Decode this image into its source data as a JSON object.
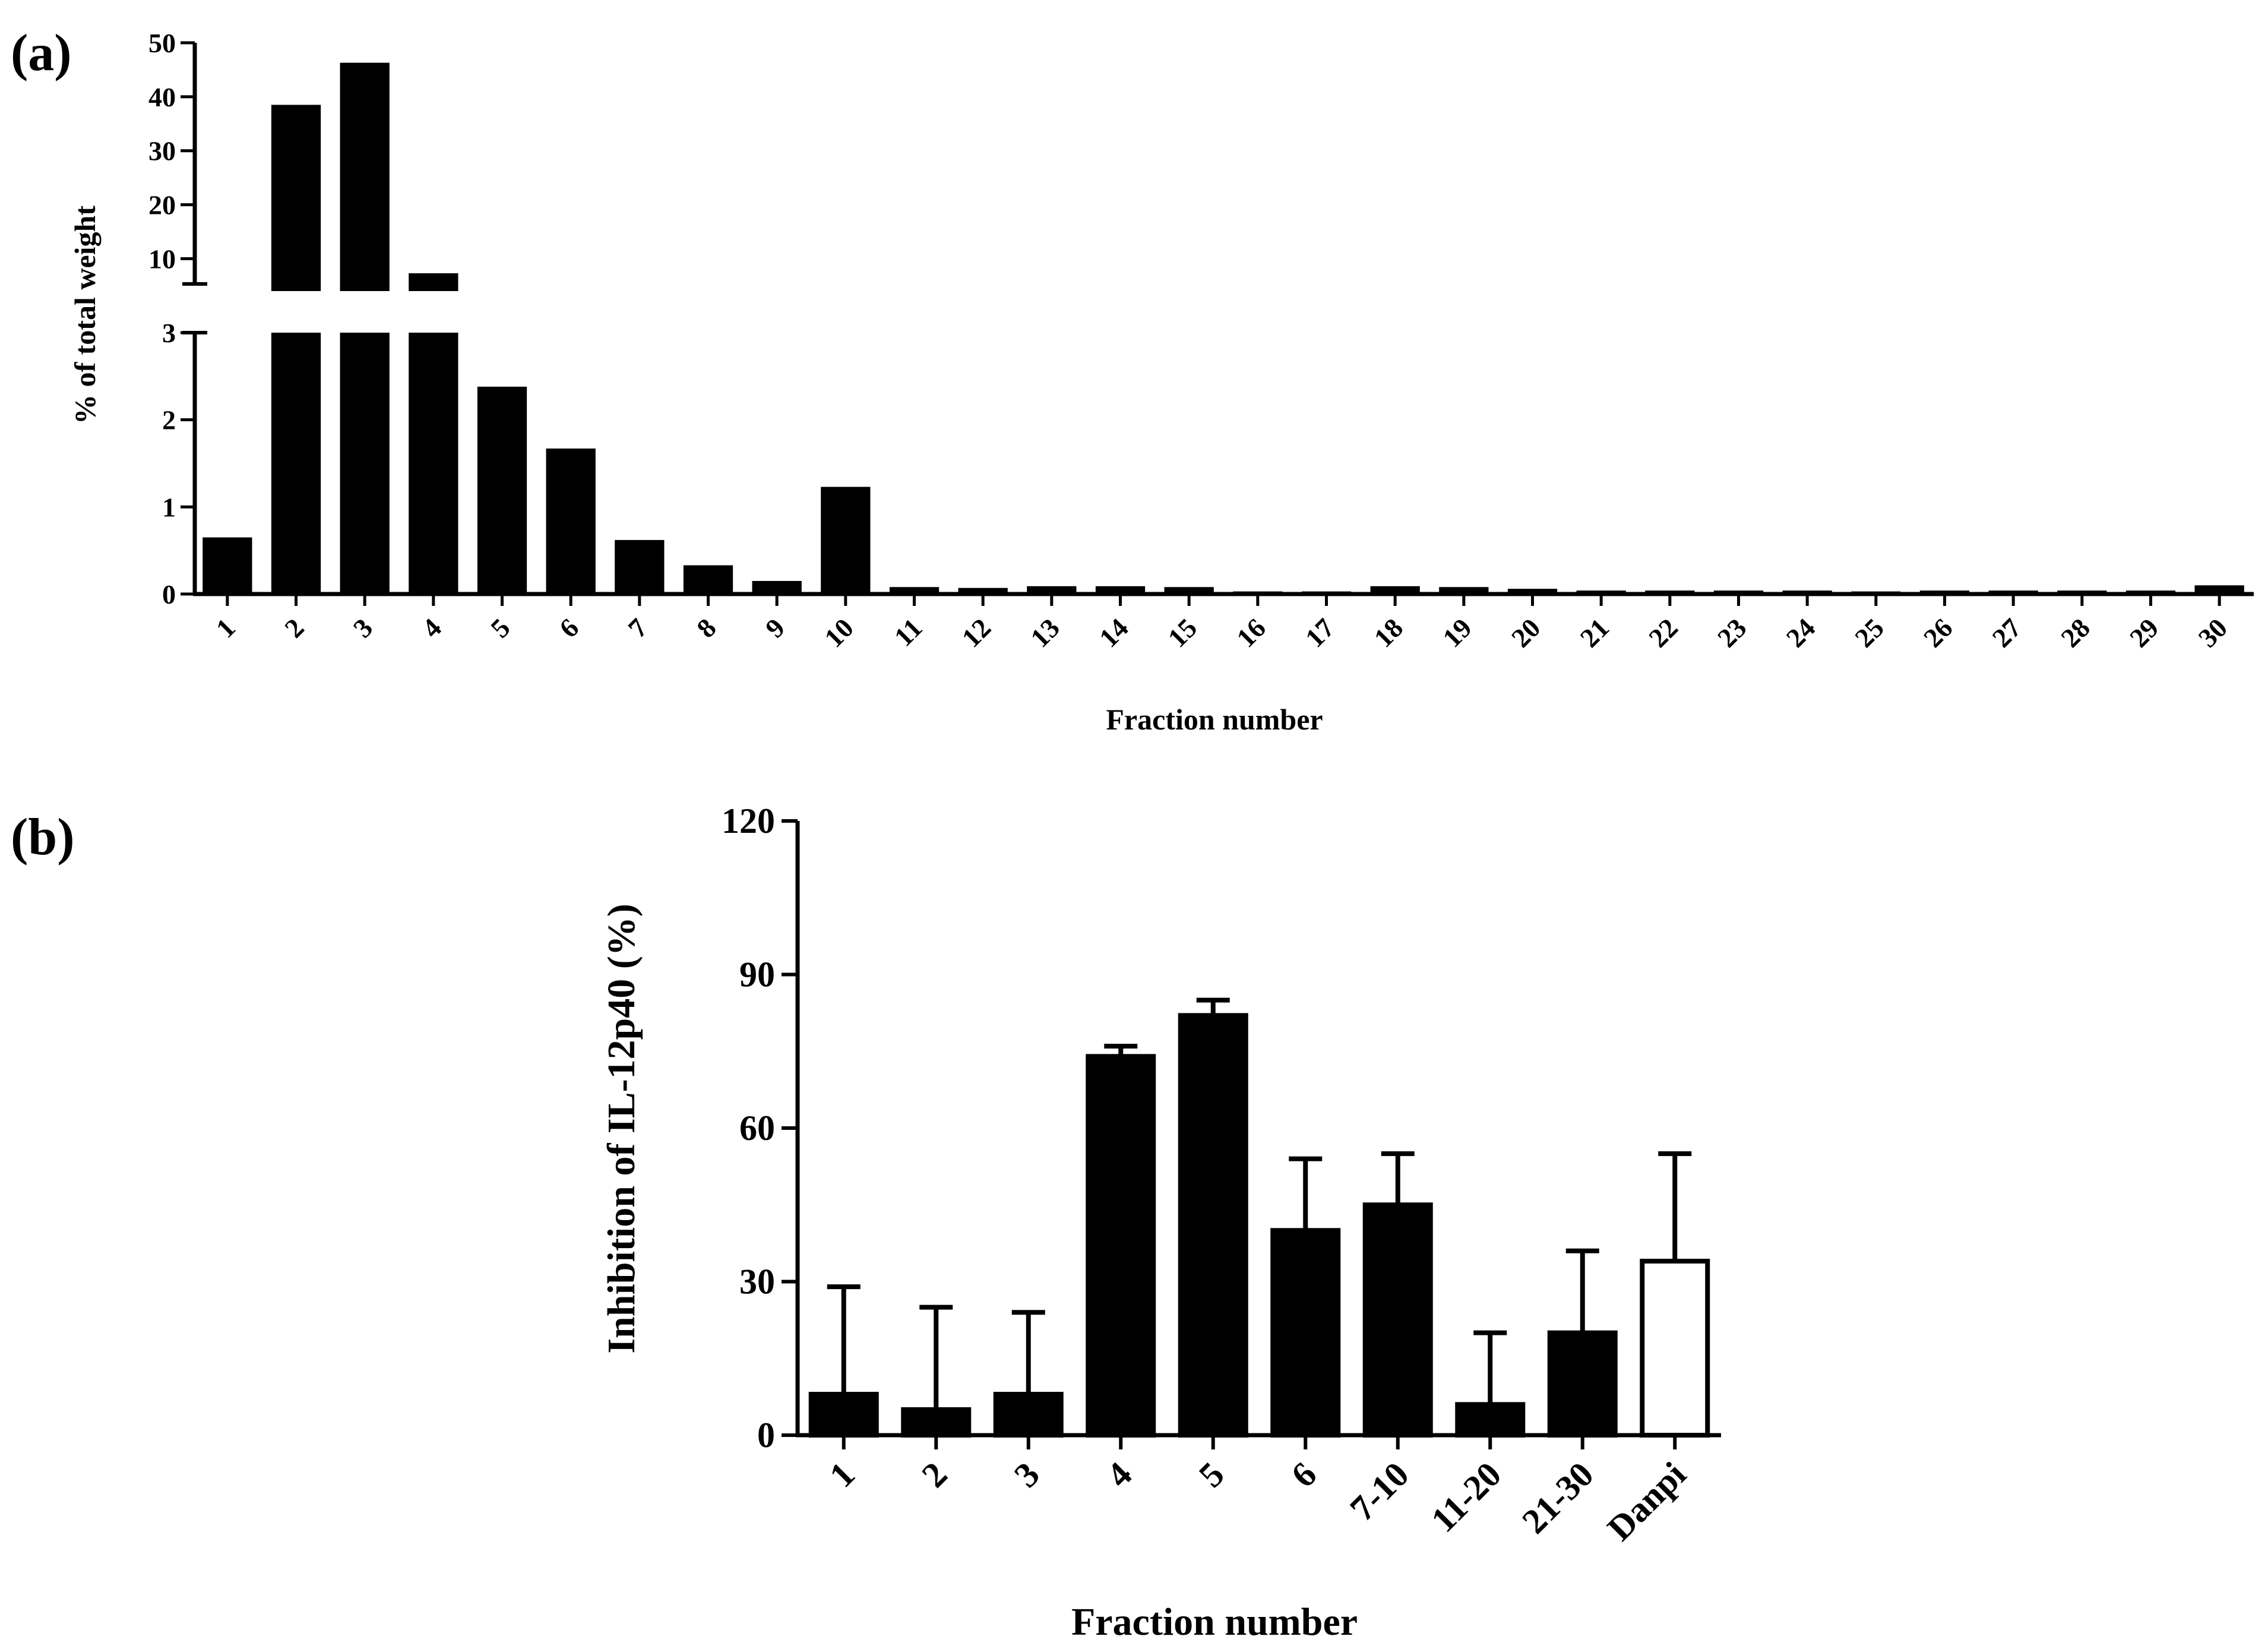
{
  "chart_data": [
    {
      "type": "bar",
      "panel_label": "(a)",
      "xlabel": "Fraction number",
      "ylabel": "% of total weight",
      "axis_break": true,
      "lower_segment": {
        "ylim": [
          0,
          3
        ],
        "ticks": [
          "0",
          "1",
          "2",
          "3"
        ]
      },
      "upper_segment": {
        "ylim": [
          4,
          50
        ],
        "ticks": [
          "10",
          "20",
          "30",
          "40",
          "50"
        ]
      },
      "categories": [
        "1",
        "2",
        "3",
        "4",
        "5",
        "6",
        "7",
        "8",
        "9",
        "10",
        "11",
        "12",
        "13",
        "14",
        "15",
        "16",
        "17",
        "18",
        "19",
        "20",
        "21",
        "22",
        "23",
        "24",
        "25",
        "26",
        "27",
        "28",
        "29",
        "30"
      ],
      "values": [
        0.65,
        38.5,
        46.3,
        7.3,
        2.38,
        1.67,
        0.62,
        0.33,
        0.15,
        1.23,
        0.08,
        0.07,
        0.09,
        0.09,
        0.08,
        0.03,
        0.03,
        0.09,
        0.08,
        0.06,
        0.04,
        0.04,
        0.04,
        0.04,
        0.03,
        0.04,
        0.04,
        0.04,
        0.04,
        0.1
      ],
      "color": "#000000"
    },
    {
      "type": "bar",
      "panel_label": "(b)",
      "xlabel": "Fraction number",
      "ylabel": "Inhibition of IL-12p40 (%)",
      "ylim": [
        0,
        120
      ],
      "yticks": [
        "0",
        "30",
        "60",
        "90",
        "120"
      ],
      "categories": [
        "1",
        "2",
        "3",
        "4",
        "5",
        "6",
        "7-10",
        "11-20",
        "21-30",
        "Danpi"
      ],
      "values": [
        8,
        5,
        8,
        74,
        82,
        40,
        45,
        6,
        20,
        34
      ],
      "errors": [
        21,
        20,
        16,
        2,
        3,
        14,
        10,
        14,
        16,
        21
      ],
      "fills": [
        "#000000",
        "#000000",
        "#000000",
        "#000000",
        "#000000",
        "#000000",
        "#000000",
        "#000000",
        "#000000",
        "#ffffff"
      ]
    }
  ]
}
